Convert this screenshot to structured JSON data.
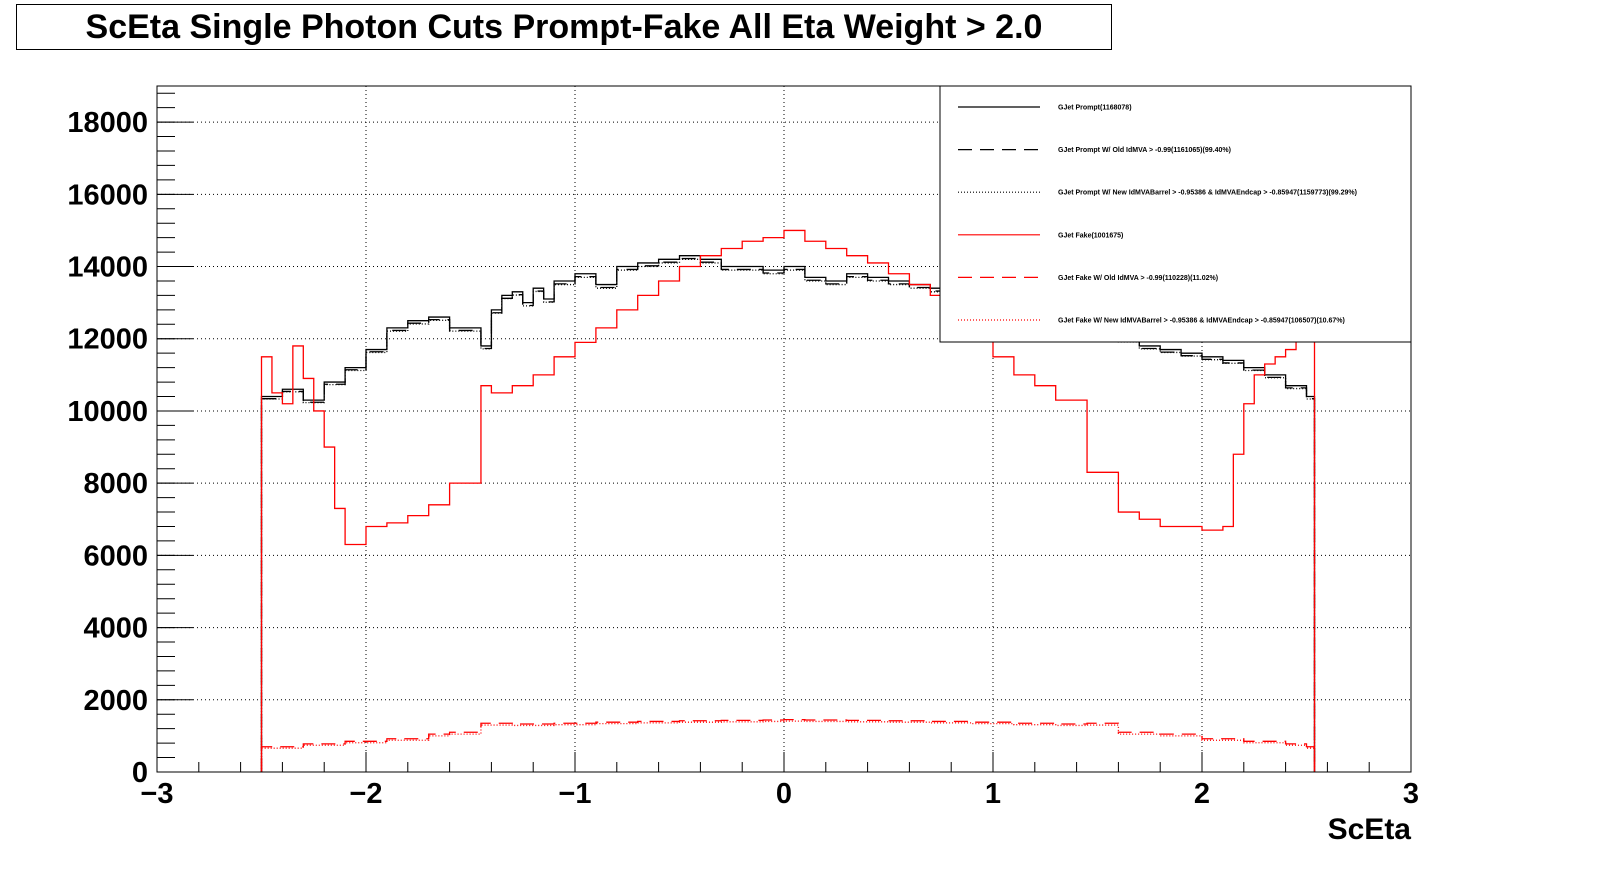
{
  "chart_data": {
    "type": "line",
    "title": "ScEta Single Photon Cuts Prompt-Fake All Eta Weight > 2.0",
    "xlabel": "ScEta",
    "ylabel": "",
    "xlim": [
      -3,
      3
    ],
    "ylim": [
      0,
      19000
    ],
    "x_ticks": [
      "−3",
      "−2",
      "−1",
      "0",
      "1",
      "2",
      "3"
    ],
    "y_ticks": [
      "0",
      "2000",
      "4000",
      "6000",
      "8000",
      "10000",
      "12000",
      "14000",
      "16000",
      "18000"
    ],
    "grid": true,
    "legend_position": "top-right",
    "colors": {
      "prompt": "#000000",
      "fake": "#ff0000"
    },
    "series": [
      {
        "name": "GJet Prompt(1168078)",
        "color": "#000000",
        "dash": "solid",
        "x": [
          -2.5,
          -2.4,
          -2.3,
          -2.2,
          -2.1,
          -2.0,
          -1.9,
          -1.8,
          -1.7,
          -1.6,
          -1.45,
          -1.4,
          -1.35,
          -1.3,
          -1.25,
          -1.2,
          -1.15,
          -1.1,
          -1.0,
          -0.9,
          -0.8,
          -0.7,
          -0.6,
          -0.5,
          -0.4,
          -0.3,
          -0.2,
          -0.1,
          0.0,
          0.1,
          0.2,
          0.3,
          0.4,
          0.5,
          0.6,
          0.7,
          0.8,
          0.9,
          1.0,
          1.1,
          1.2,
          1.3,
          1.45,
          1.6,
          1.7,
          1.8,
          1.9,
          2.0,
          2.1,
          2.2,
          2.3,
          2.4,
          2.5
        ],
        "y": [
          10400,
          10600,
          10300,
          10800,
          11200,
          11700,
          12300,
          12500,
          12600,
          12300,
          11800,
          12800,
          13200,
          13300,
          13000,
          13400,
          13100,
          13600,
          13800,
          13500,
          14000,
          14100,
          14200,
          14300,
          14200,
          14000,
          14000,
          13900,
          14000,
          13700,
          13600,
          13800,
          13700,
          13600,
          13500,
          13400,
          13400,
          13200,
          13200,
          13000,
          12800,
          12500,
          12200,
          12000,
          11800,
          11700,
          11600,
          11500,
          11400,
          11200,
          11000,
          10700,
          10400
        ]
      },
      {
        "name": "GJet Prompt W/ Old IdMVA > -0.99(1161065)(99.40%)",
        "color": "#000000",
        "dash": "dashed",
        "x": [
          -2.5,
          -2.4,
          -2.3,
          -2.2,
          -2.1,
          -2.0,
          -1.9,
          -1.8,
          -1.7,
          -1.6,
          -1.45,
          -1.4,
          -1.35,
          -1.3,
          -1.25,
          -1.2,
          -1.15,
          -1.1,
          -1.0,
          -0.9,
          -0.8,
          -0.7,
          -0.6,
          -0.5,
          -0.4,
          -0.3,
          -0.2,
          -0.1,
          0.0,
          0.1,
          0.2,
          0.3,
          0.4,
          0.5,
          0.6,
          0.7,
          0.8,
          0.9,
          1.0,
          1.1,
          1.2,
          1.3,
          1.45,
          1.6,
          1.7,
          1.8,
          1.9,
          2.0,
          2.1,
          2.2,
          2.3,
          2.4,
          2.5
        ],
        "y": [
          10340,
          10540,
          10240,
          10740,
          11140,
          11640,
          12230,
          12430,
          12530,
          12230,
          11730,
          12720,
          13120,
          13220,
          12920,
          13320,
          13020,
          13520,
          13720,
          13420,
          13920,
          14020,
          14120,
          14220,
          14120,
          13920,
          13920,
          13820,
          13920,
          13620,
          13520,
          13720,
          13620,
          13520,
          13420,
          13320,
          13320,
          13120,
          13120,
          12920,
          12720,
          12420,
          12130,
          11930,
          11730,
          11630,
          11530,
          11430,
          11330,
          11130,
          10930,
          10640,
          10340
        ]
      },
      {
        "name": "GJet Prompt W/ New IdMVABarrel > -0.95386 & IdMVAEndcap > -0.85947(1159773)(99.29%)",
        "color": "#000000",
        "dash": "dotted",
        "x": [
          -2.5,
          -2.4,
          -2.3,
          -2.2,
          -2.1,
          -2.0,
          -1.9,
          -1.8,
          -1.7,
          -1.6,
          -1.45,
          -1.4,
          -1.35,
          -1.3,
          -1.25,
          -1.2,
          -1.15,
          -1.1,
          -1.0,
          -0.9,
          -0.8,
          -0.7,
          -0.6,
          -0.5,
          -0.4,
          -0.3,
          -0.2,
          -0.1,
          0.0,
          0.1,
          0.2,
          0.3,
          0.4,
          0.5,
          0.6,
          0.7,
          0.8,
          0.9,
          1.0,
          1.1,
          1.2,
          1.3,
          1.45,
          1.6,
          1.7,
          1.8,
          1.9,
          2.0,
          2.1,
          2.2,
          2.3,
          2.4,
          2.5
        ],
        "y": [
          10330,
          10530,
          10230,
          10730,
          11120,
          11620,
          12210,
          12410,
          12510,
          12210,
          11720,
          12710,
          13110,
          13210,
          12910,
          13310,
          13010,
          13500,
          13700,
          13400,
          13900,
          14000,
          14100,
          14200,
          14100,
          13900,
          13900,
          13800,
          13900,
          13600,
          13500,
          13700,
          13600,
          13500,
          13400,
          13300,
          13300,
          13100,
          13100,
          12900,
          12700,
          12410,
          12110,
          11910,
          11720,
          11620,
          11520,
          11420,
          11320,
          11120,
          10920,
          10620,
          10330
        ]
      },
      {
        "name": "GJet Fake(1001675)",
        "color": "#ff0000",
        "dash": "solid",
        "x": [
          -2.5,
          -2.45,
          -2.4,
          -2.35,
          -2.3,
          -2.25,
          -2.2,
          -2.15,
          -2.1,
          -2.0,
          -1.9,
          -1.8,
          -1.7,
          -1.6,
          -1.45,
          -1.4,
          -1.3,
          -1.2,
          -1.1,
          -1.0,
          -0.9,
          -0.8,
          -0.7,
          -0.6,
          -0.5,
          -0.4,
          -0.3,
          -0.2,
          -0.1,
          0.0,
          0.1,
          0.2,
          0.3,
          0.4,
          0.5,
          0.6,
          0.7,
          0.8,
          0.9,
          1.0,
          1.1,
          1.2,
          1.3,
          1.45,
          1.6,
          1.7,
          1.8,
          1.9,
          2.0,
          2.1,
          2.15,
          2.2,
          2.25,
          2.3,
          2.35,
          2.4,
          2.45,
          2.5
        ],
        "y": [
          11500,
          10500,
          10200,
          11800,
          10900,
          10000,
          9000,
          7300,
          6300,
          6800,
          6900,
          7100,
          7400,
          8000,
          10700,
          10500,
          10700,
          11000,
          11500,
          11900,
          12300,
          12800,
          13200,
          13600,
          14000,
          14300,
          14500,
          14700,
          14800,
          15000,
          14700,
          14500,
          14300,
          14100,
          13800,
          13500,
          13200,
          12500,
          12000,
          11500,
          11000,
          10700,
          10300,
          8300,
          7200,
          7000,
          6800,
          6800,
          6700,
          6800,
          8800,
          10200,
          11000,
          11300,
          11500,
          11700,
          12000,
          12200
        ]
      },
      {
        "name": "GJet Fake W/ Old IdMVA > -0.99(110228)(11.02%)",
        "color": "#ff0000",
        "dash": "dashed",
        "x": [
          -2.5,
          -2.3,
          -2.1,
          -1.9,
          -1.7,
          -1.6,
          -1.45,
          -1.3,
          -1.1,
          -0.9,
          -0.7,
          -0.5,
          -0.3,
          -0.1,
          0.0,
          0.1,
          0.3,
          0.5,
          0.7,
          0.9,
          1.1,
          1.3,
          1.45,
          1.6,
          1.8,
          2.0,
          2.2,
          2.4,
          2.5
        ],
        "y": [
          700,
          780,
          850,
          920,
          1050,
          1100,
          1350,
          1330,
          1350,
          1380,
          1400,
          1420,
          1430,
          1440,
          1450,
          1440,
          1430,
          1420,
          1400,
          1380,
          1350,
          1330,
          1350,
          1100,
          1050,
          920,
          850,
          780,
          700
        ]
      },
      {
        "name": "GJet Fake W/ New IdMVABarrel > -0.95386 & IdMVAEndcap > -0.85947(106507)(10.67%)",
        "color": "#ff0000",
        "dash": "dotted",
        "x": [
          -2.5,
          -2.3,
          -2.1,
          -1.9,
          -1.7,
          -1.6,
          -1.45,
          -1.3,
          -1.1,
          -0.9,
          -0.7,
          -0.5,
          -0.3,
          -0.1,
          0.0,
          0.1,
          0.3,
          0.5,
          0.7,
          0.9,
          1.1,
          1.3,
          1.45,
          1.6,
          1.8,
          2.0,
          2.2,
          2.4,
          2.5
        ],
        "y": [
          660,
          740,
          810,
          880,
          1000,
          1050,
          1300,
          1290,
          1310,
          1340,
          1360,
          1380,
          1390,
          1400,
          1410,
          1400,
          1390,
          1380,
          1360,
          1340,
          1310,
          1290,
          1300,
          1050,
          1000,
          880,
          810,
          740,
          660
        ]
      }
    ]
  }
}
